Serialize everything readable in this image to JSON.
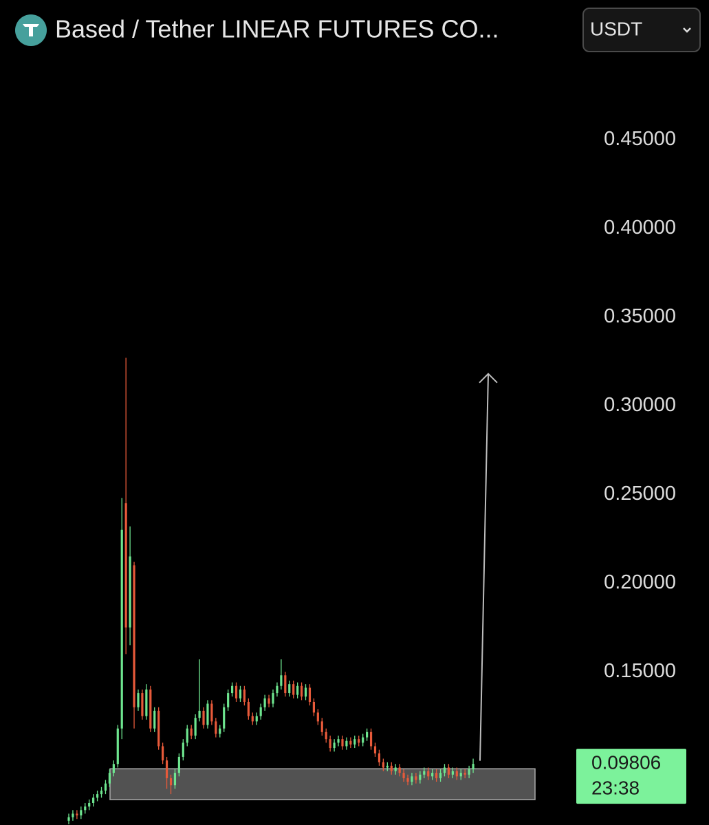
{
  "chart_data": {
    "type": "candlestick",
    "title": "Based / Tether LINEAR FUTURES CO...",
    "currency": "USDT",
    "up_color": "#6ee58f",
    "down_color": "#e85a3a",
    "ylim": [
      0.0636,
      0.49
    ],
    "yticks": [
      {
        "value": 0.15,
        "label": "0.15000"
      },
      {
        "value": 0.2,
        "label": "0.20000"
      },
      {
        "value": 0.25,
        "label": "0.25000"
      },
      {
        "value": 0.3,
        "label": "0.30000"
      },
      {
        "value": 0.35,
        "label": "0.35000"
      },
      {
        "value": 0.4,
        "label": "0.40000"
      },
      {
        "value": 0.45,
        "label": "0.45000"
      }
    ],
    "last_price": {
      "value": 0.09806,
      "label": "0.09806"
    },
    "countdown": "23:38",
    "zone": {
      "top": 0.0953,
      "bottom": 0.0779
    },
    "arrow": {
      "from": 0.0998,
      "to": 0.318
    },
    "open": [
      0.066,
      0.068,
      0.07,
      0.069,
      0.072,
      0.074,
      0.076,
      0.079,
      0.081,
      0.083,
      0.087,
      0.093,
      0.098,
      0.118,
      0.245,
      0.175,
      0.21,
      0.13,
      0.138,
      0.125,
      0.14,
      0.118,
      0.128,
      0.108,
      0.1,
      0.09,
      0.086,
      0.093,
      0.102,
      0.11,
      0.118,
      0.114,
      0.124,
      0.128,
      0.12,
      0.132,
      0.122,
      0.115,
      0.118,
      0.13,
      0.138,
      0.142,
      0.135,
      0.14,
      0.133,
      0.125,
      0.122,
      0.125,
      0.13,
      0.135,
      0.132,
      0.138,
      0.142,
      0.148,
      0.138,
      0.143,
      0.137,
      0.142,
      0.136,
      0.141,
      0.133,
      0.127,
      0.122,
      0.116,
      0.112,
      0.107,
      0.11,
      0.112,
      0.108,
      0.111,
      0.109,
      0.112,
      0.11,
      0.113,
      0.116,
      0.108,
      0.104,
      0.099,
      0.096,
      0.097,
      0.094,
      0.096,
      0.093,
      0.09,
      0.088,
      0.091,
      0.089,
      0.092,
      0.094,
      0.091,
      0.093,
      0.09,
      0.093,
      0.096,
      0.092,
      0.094,
      0.091,
      0.093,
      0.092,
      0.095
    ],
    "high": [
      0.07,
      0.072,
      0.072,
      0.074,
      0.076,
      0.078,
      0.081,
      0.083,
      0.085,
      0.089,
      0.095,
      0.1,
      0.12,
      0.248,
      0.327,
      0.232,
      0.212,
      0.14,
      0.14,
      0.143,
      0.142,
      0.13,
      0.13,
      0.11,
      0.102,
      0.092,
      0.095,
      0.104,
      0.112,
      0.12,
      0.12,
      0.126,
      0.157,
      0.13,
      0.134,
      0.134,
      0.124,
      0.12,
      0.132,
      0.14,
      0.144,
      0.144,
      0.142,
      0.142,
      0.135,
      0.127,
      0.127,
      0.132,
      0.137,
      0.137,
      0.14,
      0.144,
      0.157,
      0.15,
      0.145,
      0.145,
      0.144,
      0.144,
      0.143,
      0.143,
      0.135,
      0.129,
      0.124,
      0.118,
      0.114,
      0.112,
      0.114,
      0.114,
      0.113,
      0.113,
      0.114,
      0.114,
      0.115,
      0.118,
      0.118,
      0.11,
      0.106,
      0.101,
      0.099,
      0.099,
      0.098,
      0.098,
      0.095,
      0.092,
      0.093,
      0.093,
      0.094,
      0.096,
      0.096,
      0.095,
      0.095,
      0.095,
      0.098,
      0.098,
      0.096,
      0.096,
      0.095,
      0.095,
      0.097,
      0.101
    ],
    "low": [
      0.064,
      0.066,
      0.067,
      0.067,
      0.07,
      0.072,
      0.074,
      0.077,
      0.079,
      0.081,
      0.085,
      0.091,
      0.096,
      0.112,
      0.16,
      0.165,
      0.118,
      0.128,
      0.123,
      0.123,
      0.116,
      0.116,
      0.106,
      0.098,
      0.084,
      0.081,
      0.084,
      0.091,
      0.1,
      0.108,
      0.112,
      0.112,
      0.122,
      0.118,
      0.118,
      0.12,
      0.113,
      0.113,
      0.116,
      0.128,
      0.136,
      0.133,
      0.133,
      0.131,
      0.123,
      0.12,
      0.12,
      0.123,
      0.128,
      0.13,
      0.13,
      0.136,
      0.14,
      0.136,
      0.136,
      0.135,
      0.135,
      0.134,
      0.134,
      0.131,
      0.125,
      0.12,
      0.114,
      0.11,
      0.105,
      0.105,
      0.108,
      0.106,
      0.106,
      0.107,
      0.107,
      0.108,
      0.108,
      0.111,
      0.106,
      0.102,
      0.097,
      0.094,
      0.094,
      0.092,
      0.092,
      0.091,
      0.088,
      0.086,
      0.086,
      0.087,
      0.087,
      0.09,
      0.089,
      0.089,
      0.088,
      0.088,
      0.091,
      0.09,
      0.09,
      0.089,
      0.089,
      0.09,
      0.09,
      0.093
    ],
    "close": [
      0.068,
      0.07,
      0.069,
      0.072,
      0.074,
      0.076,
      0.079,
      0.081,
      0.083,
      0.087,
      0.093,
      0.098,
      0.118,
      0.23,
      0.175,
      0.215,
      0.13,
      0.138,
      0.125,
      0.14,
      0.118,
      0.128,
      0.108,
      0.1,
      0.09,
      0.086,
      0.093,
      0.102,
      0.11,
      0.118,
      0.114,
      0.124,
      0.128,
      0.12,
      0.132,
      0.122,
      0.115,
      0.118,
      0.13,
      0.138,
      0.142,
      0.135,
      0.14,
      0.133,
      0.125,
      0.122,
      0.125,
      0.13,
      0.135,
      0.132,
      0.138,
      0.142,
      0.148,
      0.138,
      0.143,
      0.137,
      0.142,
      0.136,
      0.141,
      0.133,
      0.127,
      0.122,
      0.116,
      0.112,
      0.107,
      0.11,
      0.112,
      0.108,
      0.111,
      0.109,
      0.112,
      0.11,
      0.113,
      0.116,
      0.108,
      0.104,
      0.099,
      0.096,
      0.097,
      0.094,
      0.096,
      0.093,
      0.09,
      0.088,
      0.091,
      0.089,
      0.092,
      0.094,
      0.091,
      0.093,
      0.09,
      0.093,
      0.096,
      0.092,
      0.094,
      0.091,
      0.093,
      0.092,
      0.095,
      0.09806
    ]
  }
}
